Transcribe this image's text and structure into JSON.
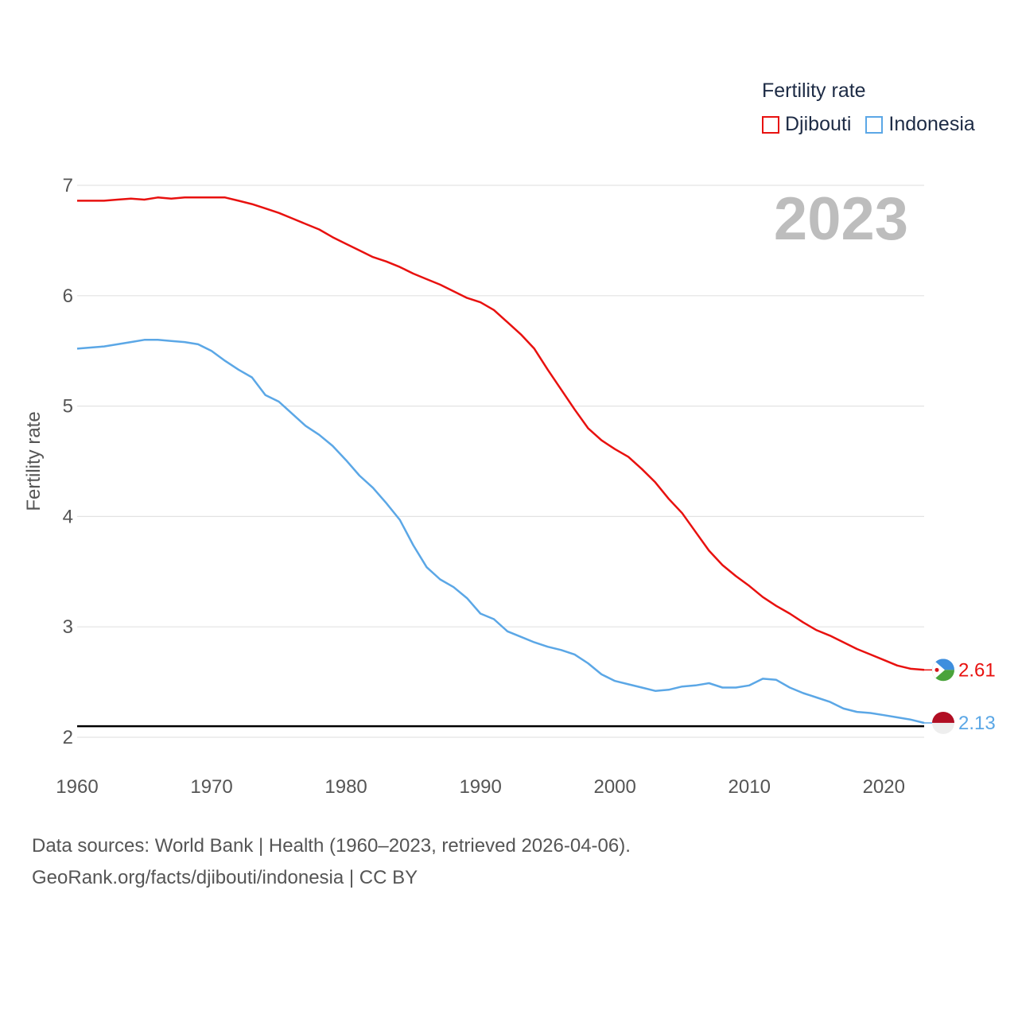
{
  "legend": {
    "title": "Fertility rate"
  },
  "year_display": "2023",
  "source": {
    "line1": "Data sources: World Bank | Health (1960–2023, retrieved 2026-04-06).",
    "line2": "GeoRank.org/facts/djibouti/indonesia | CC BY"
  },
  "chart_data": {
    "type": "line",
    "title": "Fertility rate",
    "xlabel": "",
    "ylabel": "Fertility rate",
    "xlim": [
      1960,
      2023
    ],
    "ylim": [
      2,
      7
    ],
    "xticks": [
      "1960",
      "1970",
      "1980",
      "1990",
      "2000",
      "2010",
      "2020"
    ],
    "yticks": [
      "2",
      "3",
      "4",
      "5",
      "6",
      "7"
    ],
    "grid": true,
    "legend_position": "top-right",
    "reference_line": {
      "y": 2.1
    },
    "x": [
      1960,
      1961,
      1962,
      1963,
      1964,
      1965,
      1966,
      1967,
      1968,
      1969,
      1970,
      1971,
      1972,
      1973,
      1974,
      1975,
      1976,
      1977,
      1978,
      1979,
      1980,
      1981,
      1982,
      1983,
      1984,
      1985,
      1986,
      1987,
      1988,
      1989,
      1990,
      1991,
      1992,
      1993,
      1994,
      1995,
      1996,
      1997,
      1998,
      1999,
      2000,
      2001,
      2002,
      2003,
      2004,
      2005,
      2006,
      2007,
      2008,
      2009,
      2010,
      2011,
      2012,
      2013,
      2014,
      2015,
      2016,
      2017,
      2018,
      2019,
      2020,
      2021,
      2022,
      2023
    ],
    "series": [
      {
        "name": "Djibouti",
        "color": "#e8110f",
        "end_label": "2.61",
        "flag": "djibouti-flag",
        "values": [
          6.86,
          6.86,
          6.86,
          6.87,
          6.88,
          6.87,
          6.89,
          6.88,
          6.89,
          6.89,
          6.89,
          6.89,
          6.86,
          6.83,
          6.79,
          6.75,
          6.7,
          6.65,
          6.6,
          6.53,
          6.47,
          6.41,
          6.35,
          6.31,
          6.26,
          6.2,
          6.15,
          6.1,
          6.04,
          5.98,
          5.94,
          5.87,
          5.76,
          5.65,
          5.52,
          5.33,
          5.15,
          4.97,
          4.8,
          4.69,
          4.61,
          4.54,
          4.43,
          4.31,
          4.16,
          4.03,
          3.86,
          3.69,
          3.56,
          3.46,
          3.37,
          3.27,
          3.19,
          3.12,
          3.04,
          2.97,
          2.92,
          2.86,
          2.8,
          2.75,
          2.7,
          2.65,
          2.62,
          2.61
        ]
      },
      {
        "name": "Indonesia",
        "color": "#5ba7e6",
        "end_label": "2.13",
        "flag": "indonesia-flag",
        "values": [
          5.52,
          5.53,
          5.54,
          5.56,
          5.58,
          5.6,
          5.6,
          5.59,
          5.58,
          5.56,
          5.5,
          5.41,
          5.33,
          5.26,
          5.1,
          5.04,
          4.93,
          4.82,
          4.74,
          4.64,
          4.51,
          4.37,
          4.26,
          4.12,
          3.97,
          3.74,
          3.54,
          3.43,
          3.36,
          3.26,
          3.12,
          3.07,
          2.96,
          2.91,
          2.86,
          2.82,
          2.79,
          2.75,
          2.67,
          2.57,
          2.51,
          2.48,
          2.45,
          2.42,
          2.43,
          2.46,
          2.47,
          2.49,
          2.45,
          2.45,
          2.47,
          2.53,
          2.52,
          2.45,
          2.4,
          2.36,
          2.32,
          2.26,
          2.23,
          2.22,
          2.2,
          2.18,
          2.16,
          2.13
        ]
      }
    ]
  }
}
